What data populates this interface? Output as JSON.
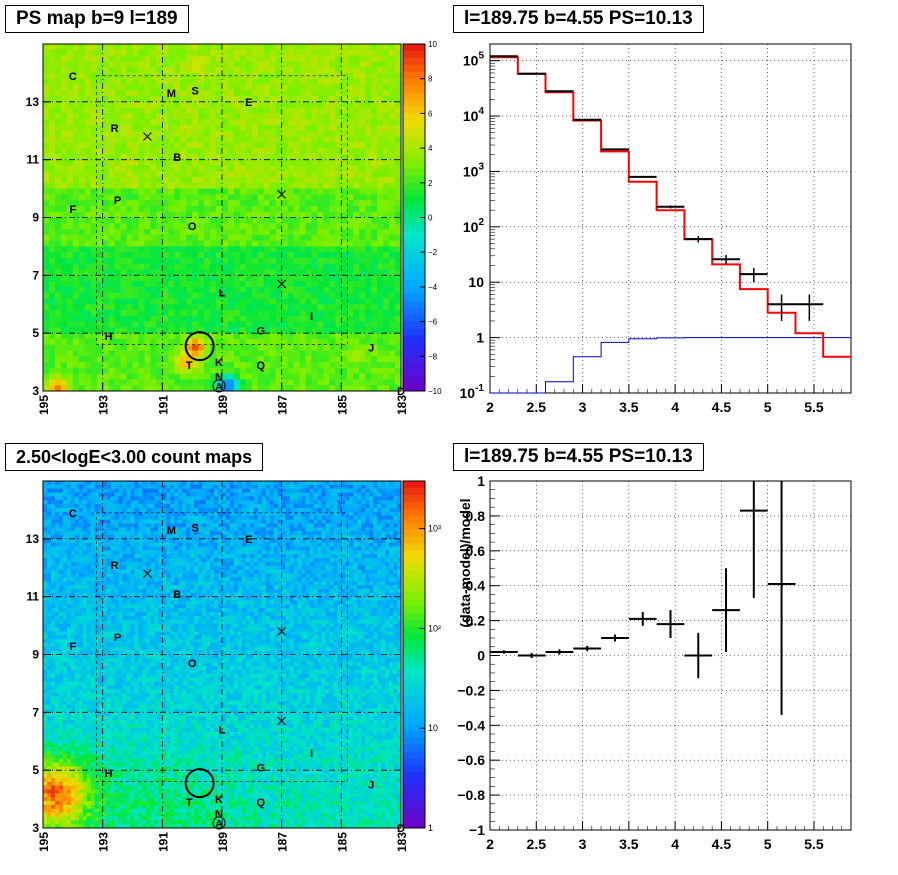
{
  "titles": {
    "ps_map": "PS map b=9 l=189",
    "spectrum": "l=189.75 b=4.55 PS=10.13",
    "count_map": "2.50<logE<3.00 count maps",
    "residual": "l=189.75 b=4.55 PS=10.13"
  },
  "colors": {
    "data": "#000000",
    "model": "#ff0000",
    "source": "#0000cc",
    "grid": "#000000"
  },
  "chart_data": [
    {
      "type": "heatmap",
      "panel": "ps-map",
      "title": "PS map b=9 l=189",
      "x_ticks": [
        "195",
        "193",
        "191",
        "189",
        "187",
        "185",
        "183"
      ],
      "y_ticks": [
        "3",
        "5",
        "7",
        "9",
        "11",
        "13"
      ],
      "xlim": [
        195,
        183
      ],
      "ylim": [
        3,
        15
      ],
      "colorbar": {
        "min": -10,
        "max": 10,
        "ticks": [
          "10",
          "8",
          "6",
          "4",
          "2",
          "0",
          "−2",
          "−4",
          "−6",
          "−8",
          "−10"
        ]
      },
      "source_marker": {
        "l": 189.75,
        "b": 4.55
      },
      "labels": [
        {
          "t": "C",
          "l": 194.0,
          "b": 13.9
        },
        {
          "t": "M",
          "l": 190.7,
          "b": 13.3
        },
        {
          "t": "S",
          "l": 189.9,
          "b": 13.4
        },
        {
          "t": "E",
          "l": 188.1,
          "b": 13.0
        },
        {
          "t": "R",
          "l": 192.6,
          "b": 12.1
        },
        {
          "t": "B",
          "l": 190.5,
          "b": 11.1
        },
        {
          "t": "P",
          "l": 192.5,
          "b": 9.6
        },
        {
          "t": "F",
          "l": 194.0,
          "b": 9.3
        },
        {
          "t": "O",
          "l": 190.0,
          "b": 8.7
        },
        {
          "t": "L",
          "l": 189.0,
          "b": 6.4
        },
        {
          "t": "I",
          "l": 186.0,
          "b": 5.6
        },
        {
          "t": "G",
          "l": 187.7,
          "b": 5.1
        },
        {
          "t": "H",
          "l": 192.8,
          "b": 4.9
        },
        {
          "t": "J",
          "l": 184.0,
          "b": 4.5
        },
        {
          "t": "T",
          "l": 190.1,
          "b": 3.9
        },
        {
          "t": "K",
          "l": 189.1,
          "b": 4.0
        },
        {
          "t": "N",
          "l": 189.1,
          "b": 3.5
        },
        {
          "t": "Q",
          "l": 187.7,
          "b": 3.9
        },
        {
          "t": "A",
          "l": 189.1,
          "b": 3.0
        }
      ],
      "cross_marks": [
        {
          "l": 191.5,
          "b": 11.8
        },
        {
          "l": 187.0,
          "b": 9.8
        },
        {
          "l": 187.0,
          "b": 6.7
        }
      ],
      "hot_spots": [
        {
          "l": 189.9,
          "b": 4.5,
          "v": 9
        },
        {
          "l": 190.2,
          "b": 4.0,
          "v": 7
        },
        {
          "l": 194.5,
          "b": 3.1,
          "v": 8
        },
        {
          "l": 189.8,
          "b": 14.3,
          "v": 5
        },
        {
          "l": 188.8,
          "b": 3.2,
          "v": -6
        },
        {
          "l": 184.5,
          "b": 4.2,
          "v": 4
        }
      ]
    },
    {
      "type": "line",
      "panel": "spectrum",
      "title": "l=189.75 b=4.55 PS=10.13",
      "yscale": "log",
      "xlim": [
        2,
        5.9
      ],
      "ylim": [
        0.1,
        200000
      ],
      "x_ticks": [
        "2",
        "2.5",
        "3",
        "3.5",
        "4",
        "4.5",
        "5",
        "5.5"
      ],
      "y_ticks": [
        "10^-1",
        "1",
        "10",
        "10^2",
        "10^3",
        "10^4",
        "10^5"
      ],
      "bin_edges": [
        2.0,
        2.3,
        2.6,
        2.9,
        3.2,
        3.5,
        3.8,
        4.1,
        4.4,
        4.7,
        5.0,
        5.3,
        5.6,
        5.9
      ],
      "series": [
        {
          "role": "data",
          "x": [
            2.15,
            2.45,
            2.75,
            3.05,
            3.35,
            3.65,
            3.95,
            4.25,
            4.55,
            4.85,
            5.15,
            5.45
          ],
          "values": [
            120000,
            58000,
            28000,
            8600,
            2500,
            800,
            230,
            60,
            26,
            14,
            4,
            4
          ],
          "xerr": [
            0.15,
            0.15,
            0.15,
            0.15,
            0.15,
            0.15,
            0.15,
            0.15,
            0.15,
            0.15,
            0.15,
            0.15
          ],
          "yerr": [
            350,
            240,
            170,
            90,
            50,
            28,
            15,
            8,
            5,
            4,
            2,
            2
          ]
        },
        {
          "role": "model",
          "values": [
            115000,
            58000,
            27000,
            8300,
            2300,
            650,
            200,
            60,
            21,
            7.5,
            2.8,
            1.2,
            0.45
          ]
        },
        {
          "role": "source",
          "values": [
            0.05,
            0.08,
            0.16,
            0.45,
            0.82,
            0.95,
            0.99,
            1.0,
            1.0,
            1.0,
            1.0,
            1.0,
            1.0
          ]
        }
      ]
    },
    {
      "type": "heatmap",
      "panel": "count-map",
      "title": "2.50<logE<3.00 count maps",
      "x_ticks": [
        "195",
        "193",
        "191",
        "189",
        "187",
        "185",
        "183"
      ],
      "y_ticks": [
        "3",
        "5",
        "7",
        "9",
        "11",
        "13"
      ],
      "xlim": [
        195,
        183
      ],
      "ylim": [
        3,
        15
      ],
      "colorbar": {
        "scale": "log",
        "min": 1,
        "max": 3000,
        "ticks": [
          "10³",
          "10²",
          "10",
          "1"
        ]
      },
      "source_marker": {
        "l": 189.75,
        "b": 4.55
      }
    },
    {
      "type": "scatter",
      "panel": "residual",
      "title": "l=189.75 b=4.55 PS=10.13",
      "ylabel": "(data-model)/model",
      "xlim": [
        2,
        5.9
      ],
      "ylim": [
        -1,
        1
      ],
      "x_ticks": [
        "2",
        "2.5",
        "3",
        "3.5",
        "4",
        "4.5",
        "5",
        "5.5"
      ],
      "y_ticks": [
        "1",
        "0.8",
        "0.6",
        "0.4",
        "0.2",
        "0",
        "−0.2",
        "−0.4",
        "−0.6",
        "−0.8",
        "−1"
      ],
      "series": [
        {
          "x": [
            2.15,
            2.45,
            2.75,
            3.05,
            3.35,
            3.65,
            3.95,
            4.25,
            4.55,
            4.85,
            5.15
          ],
          "values": [
            0.02,
            0.0,
            0.02,
            0.04,
            0.1,
            0.21,
            0.18,
            0.0,
            0.26,
            0.83,
            0.41
          ],
          "xerr": [
            0.15,
            0.15,
            0.15,
            0.15,
            0.15,
            0.15,
            0.15,
            0.15,
            0.15,
            0.15,
            0.15
          ],
          "yerr": [
            0.01,
            0.015,
            0.015,
            0.015,
            0.02,
            0.04,
            0.08,
            0.13,
            0.24,
            0.5,
            0.75
          ]
        }
      ]
    }
  ]
}
